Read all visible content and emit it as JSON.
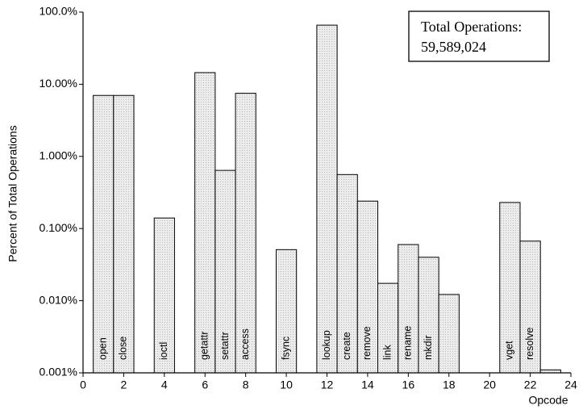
{
  "chart_data": {
    "type": "bar",
    "y_label": "Percent of Total Operations",
    "x_label": "Opcode",
    "annotation": [
      "Total Operations:",
      "59,589,024"
    ],
    "x": [
      1,
      2,
      4,
      6,
      7,
      8,
      10,
      12,
      13,
      14,
      15,
      16,
      17,
      18,
      21,
      22,
      23
    ],
    "bar_labels": [
      "open",
      "close",
      "ioctl",
      "getattr",
      "setattr",
      "access",
      "fsync",
      "lookup",
      "create",
      "remove",
      "link",
      "rename",
      "mkdir",
      null,
      "vget",
      "resolve",
      null
    ],
    "values": [
      7,
      7,
      0.14,
      14.5,
      0.64,
      7.5,
      0.051,
      66,
      0.56,
      0.24,
      0.0174,
      0.06,
      0.04,
      0.0122,
      0.23,
      0.067,
      0.0011
    ],
    "color": "#e4e4e4",
    "log_scale": true,
    "xlim": [
      0,
      24
    ],
    "xticks": [
      0,
      2,
      4,
      6,
      8,
      10,
      12,
      14,
      16,
      18,
      20,
      22,
      24
    ],
    "ylim": [
      0.001,
      100
    ],
    "yticks": [
      {
        "value": 0.001,
        "label": "0.001%"
      },
      {
        "value": 0.01,
        "label": "0.010%"
      },
      {
        "value": 0.1,
        "label": "0.100%"
      },
      {
        "value": 1,
        "label": "1.000%"
      },
      {
        "value": 10,
        "label": "10.00%"
      },
      {
        "value": 100,
        "label": "100.0%"
      }
    ]
  }
}
